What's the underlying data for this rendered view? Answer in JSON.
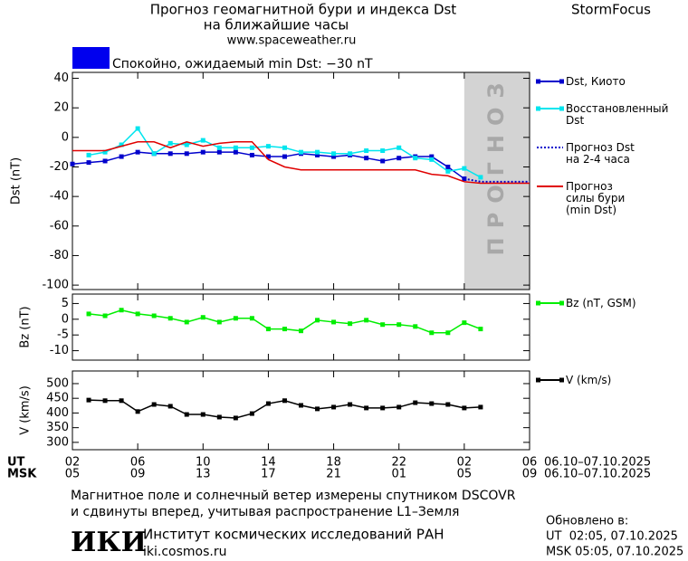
{
  "header": {
    "title_line1": "Прогноз геомагнитной бури и индекса Dst",
    "title_line2": "на ближайшие часы",
    "url": "www.spaceweather.ru",
    "brand": "StormFocus"
  },
  "status": {
    "text": "Спокойно, ожидаемый min Dst: −30 nT",
    "color": "#0000ee"
  },
  "chart_data": [
    {
      "type": "line",
      "ylabel": "Dst (nT)",
      "xlim": [
        0,
        28
      ],
      "ylim": [
        -103,
        44
      ],
      "yticks": [
        40,
        20,
        0,
        -20,
        -40,
        -60,
        -80,
        -100
      ],
      "forecast": {
        "from": 24,
        "to": 28,
        "label": "ПРОГНОЗ"
      },
      "series": [
        {
          "name": "Dst, Киото",
          "color": "#0000cc",
          "marker": true,
          "dash": false,
          "x": [
            0,
            1,
            2,
            3,
            4,
            5,
            6,
            7,
            8,
            9,
            10,
            11,
            12,
            13,
            14,
            15,
            16,
            17,
            18,
            19,
            20,
            21,
            22,
            23,
            24
          ],
          "values": [
            -18,
            -17,
            -16,
            -13,
            -10,
            -11,
            -11,
            -11,
            -10,
            -10,
            -10,
            -12,
            -13,
            -13,
            -11,
            -12,
            -13,
            -12,
            -14,
            -16,
            -14,
            -13,
            -13,
            -20,
            -28
          ]
        },
        {
          "name": "Восстановленный\nDst",
          "color": "#00e5ee",
          "marker": true,
          "dash": false,
          "x": [
            1,
            2,
            3,
            4,
            5,
            6,
            7,
            8,
            9,
            10,
            11,
            12,
            13,
            14,
            15,
            16,
            17,
            18,
            19,
            20,
            21,
            22,
            23,
            24,
            25
          ],
          "values": [
            -12,
            -10,
            -5,
            6,
            -11,
            -4,
            -5,
            -2,
            -7,
            -7,
            -7,
            -6,
            -7,
            -10,
            -10,
            -11,
            -11,
            -9,
            -9,
            -7,
            -14,
            -15,
            -23,
            -21,
            -27
          ]
        },
        {
          "name": "Прогноз Dst\nна 2-4 часа",
          "color": "#0000cc",
          "marker": false,
          "dash": true,
          "x": [
            24,
            25,
            28
          ],
          "values": [
            -28,
            -30,
            -30
          ]
        },
        {
          "name": "Прогноз\nсилы бури\n(min Dst)",
          "color": "#e00000",
          "marker": false,
          "dash": false,
          "x": [
            0,
            1,
            2,
            3,
            4,
            5,
            6,
            7,
            8,
            9,
            10,
            11,
            12,
            13,
            14,
            15,
            16,
            17,
            18,
            19,
            20,
            21,
            22,
            23,
            24,
            25,
            26,
            27,
            28
          ],
          "values": [
            -9,
            -9,
            -9,
            -6,
            -3,
            -3,
            -7,
            -3,
            -6,
            -4,
            -3,
            -3,
            -15,
            -20,
            -22,
            -22,
            -22,
            -22,
            -22,
            -22,
            -22,
            -22,
            -25,
            -26,
            -30,
            -31,
            -31,
            -31,
            -31
          ]
        }
      ]
    },
    {
      "type": "line",
      "ylabel": "Bz (nT)",
      "xlim": [
        0,
        28
      ],
      "ylim": [
        -13,
        8
      ],
      "yticks": [
        5,
        0,
        -5,
        -10
      ],
      "series": [
        {
          "name": "Bz (nT, GSM)",
          "color": "#00ee00",
          "marker": true,
          "dash": false,
          "x": [
            1,
            2,
            3,
            4,
            5,
            6,
            7,
            8,
            9,
            10,
            11,
            12,
            13,
            14,
            15,
            16,
            17,
            18,
            19,
            20,
            21,
            22,
            23,
            24,
            25
          ],
          "values": [
            1.7,
            1.1,
            2.9,
            1.7,
            1.1,
            0.3,
            -0.9,
            0.6,
            -0.9,
            0.3,
            0.3,
            -3.1,
            -3.1,
            -3.7,
            -0.3,
            -0.9,
            -1.4,
            -0.3,
            -1.7,
            -1.7,
            -2.3,
            -4.3,
            -4.3,
            -1.1,
            -3.1
          ]
        }
      ]
    },
    {
      "type": "line",
      "ylabel": "V (km/s)",
      "xlim": [
        0,
        28
      ],
      "ylim": [
        275,
        543
      ],
      "yticks": [
        500,
        450,
        400,
        350,
        300
      ],
      "xticks": [
        {
          "value": 0,
          "label": "02"
        },
        {
          "value": 4,
          "label": "06"
        },
        {
          "value": 8,
          "label": "10"
        },
        {
          "value": 12,
          "label": "14"
        },
        {
          "value": 16,
          "label": "18"
        },
        {
          "value": 20,
          "label": "22"
        },
        {
          "value": 24,
          "label": "02"
        },
        {
          "value": 28,
          "label": "06"
        }
      ],
      "msk_xticks": [
        {
          "value": 0,
          "label": "05"
        },
        {
          "value": 4,
          "label": "09"
        },
        {
          "value": 8,
          "label": "13"
        },
        {
          "value": 12,
          "label": "17"
        },
        {
          "value": 16,
          "label": "21"
        },
        {
          "value": 20,
          "label": "01"
        },
        {
          "value": 24,
          "label": "05"
        },
        {
          "value": 28,
          "label": "09"
        }
      ],
      "series": [
        {
          "name": "V (km/s)",
          "color": "#000000",
          "marker": true,
          "dash": false,
          "x": [
            1,
            2,
            3,
            4,
            5,
            6,
            7,
            8,
            9,
            10,
            11,
            12,
            13,
            14,
            15,
            16,
            17,
            18,
            19,
            20,
            21,
            22,
            23,
            24,
            25
          ],
          "values": [
            444,
            442,
            442,
            405,
            429,
            423,
            395,
            395,
            386,
            383,
            398,
            432,
            442,
            426,
            414,
            420,
            429,
            417,
            417,
            420,
            435,
            432,
            429,
            417,
            420
          ]
        }
      ]
    }
  ],
  "time_axis": {
    "ut_label": "UT",
    "msk_label": "MSK",
    "ut_range": "06.10–07.10.2025",
    "msk_range": "06.10–07.10.2025"
  },
  "footer": {
    "note_line1": "Магнитное поле и солнечный ветер измерены спутником DSCOVR",
    "note_line2": "и сдвинуты вперед, учитывая распространение L1–Земля",
    "logo": "ИКИ",
    "institute": "Институт космических исследований РАН",
    "site": "iki.cosmos.ru",
    "updated": "Обновлено в:",
    "updated_ut": "UT  02:05, 07.10.2025",
    "updated_msk": "MSK 05:05, 07.10.2025"
  }
}
